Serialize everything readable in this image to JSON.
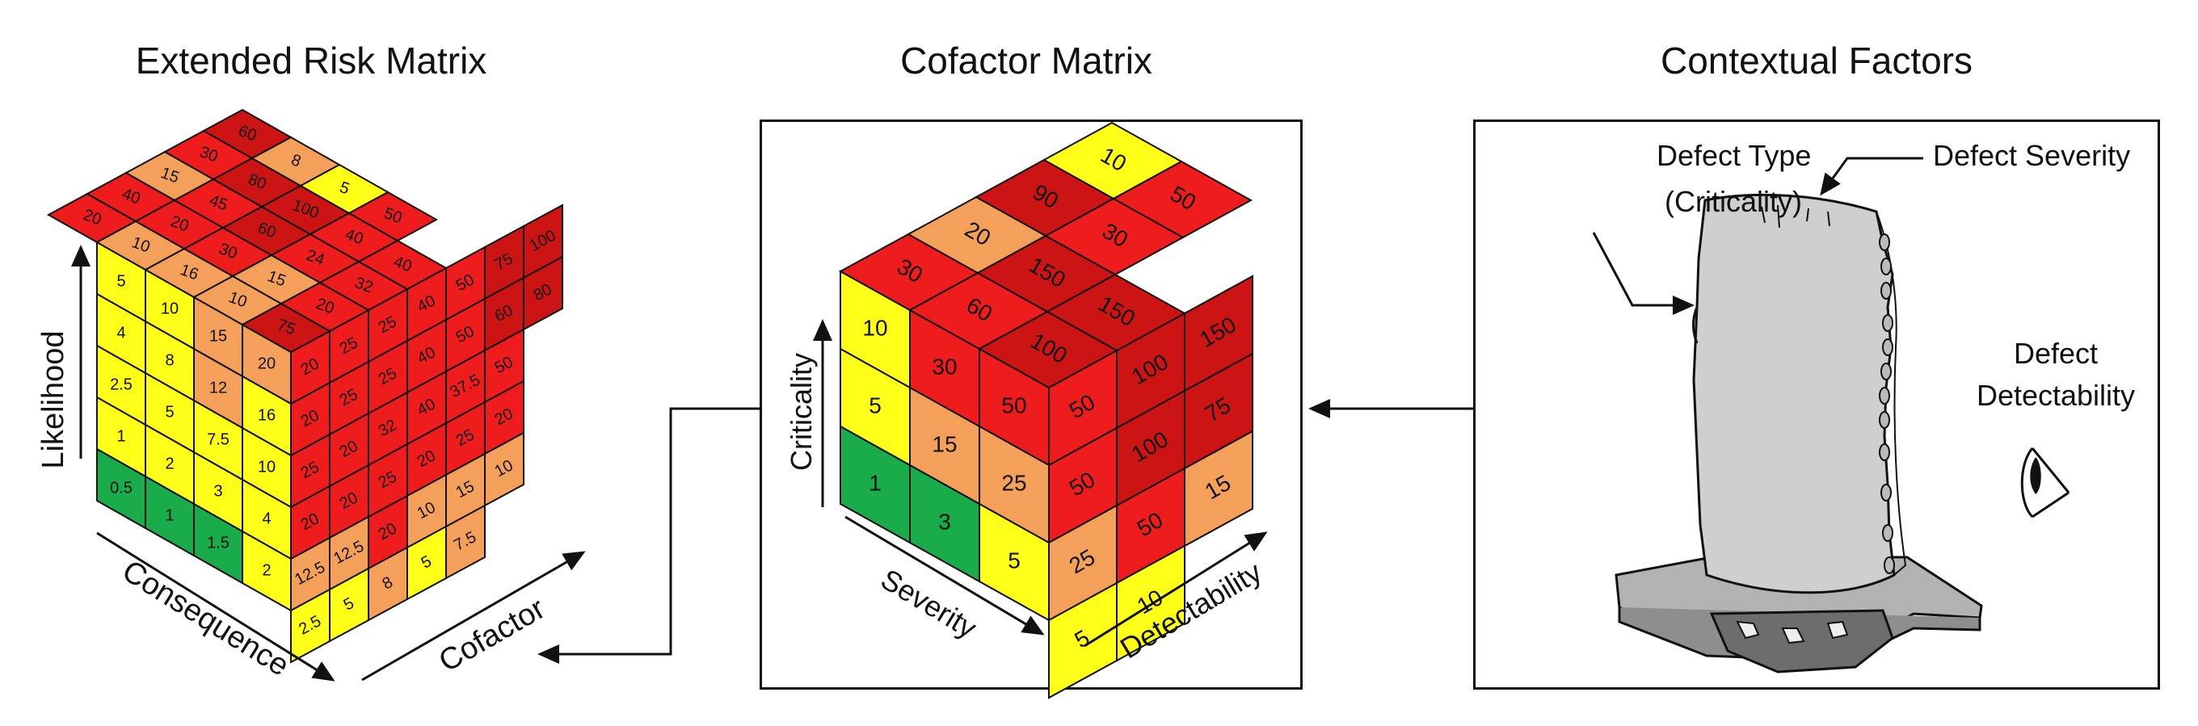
{
  "panels": {
    "extended": {
      "title": "Extended Risk Matrix",
      "axes": {
        "vertical": "Likelihood",
        "left": "Consequence",
        "right": "Cofactor"
      },
      "front_face": [
        [
          "5",
          "10",
          "15",
          "20"
        ],
        [
          "4",
          "8",
          "12",
          "16"
        ],
        [
          "2.5",
          "5",
          "7.5",
          "10"
        ],
        [
          "1",
          "2",
          "3",
          "4"
        ],
        [
          "0.5",
          "1",
          "1.5",
          "2"
        ]
      ],
      "side_face": [
        [
          "20",
          "25",
          "25",
          "40",
          "50",
          "75",
          "100"
        ],
        [
          "20",
          "25",
          "25",
          "40",
          "50",
          "60",
          "80"
        ],
        [
          "25",
          "20",
          "32",
          "40",
          "37.5",
          "50"
        ],
        [
          "20",
          "20",
          "25",
          "20",
          "25",
          "20"
        ],
        [
          "12.5",
          "12.5",
          "20",
          "10",
          "15",
          "10"
        ],
        [
          "2.5",
          "5",
          "8",
          "5",
          "7.5"
        ]
      ],
      "top_face": [
        "20",
        "40",
        "15",
        "30",
        "60",
        "10",
        "20",
        "45",
        "80",
        "8",
        "16",
        "30",
        "60",
        "100",
        "5",
        "10",
        "15",
        "24",
        "40",
        "50",
        "75",
        "20",
        "32",
        "40"
      ]
    },
    "cofactor": {
      "title": "Cofactor Matrix",
      "axes": {
        "vertical": "Criticality",
        "left": "Severity",
        "right": "Detectability"
      },
      "front_face": [
        [
          "10",
          "30",
          "50"
        ],
        [
          "5",
          "15",
          "25"
        ],
        [
          "1",
          "3",
          "5"
        ]
      ],
      "side_face": [
        [
          "50",
          "100",
          "150"
        ],
        [
          "50",
          "100",
          "75"
        ],
        [
          "25",
          "50",
          "15"
        ],
        [
          "5",
          "10"
        ]
      ],
      "top_face": [
        "30",
        "20",
        "90",
        "10",
        "60",
        "150",
        "30",
        "50",
        "100",
        "150"
      ]
    },
    "context": {
      "title": "Contextual Factors",
      "labels": {
        "defect_type_line1": "Defect Type",
        "defect_type_line2": "(Criticality)",
        "defect_severity": "Defect Severity",
        "detectability_line1": "Defect",
        "detectability_line2": "Detectability"
      }
    }
  },
  "colors": {
    "green": "#1aab4b",
    "yellow": "#ffff1a",
    "orange": "#f5a05a",
    "red": "#ee1c1c",
    "dark_red": "#cc1414",
    "line": "#111111",
    "blade_gray": "#cfcfcf"
  }
}
